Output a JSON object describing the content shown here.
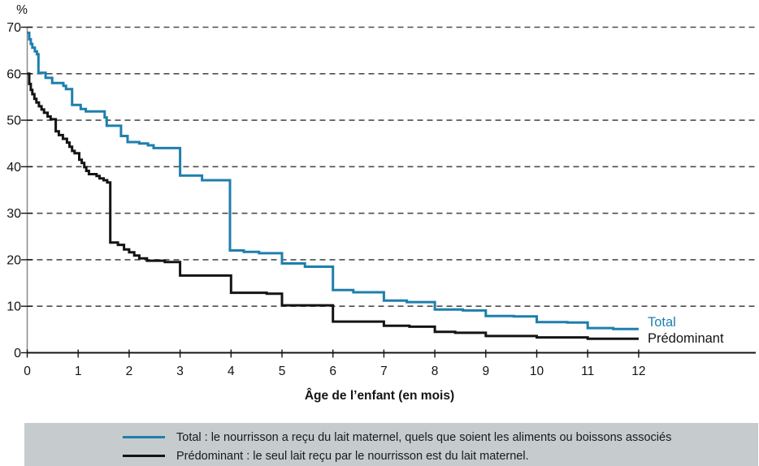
{
  "chart_data": {
    "type": "line",
    "subtype": "step-after",
    "ylabel": "%",
    "xlabel": "Âge de l’enfant (en mois)",
    "xlim": [
      0,
      12
    ],
    "ylim": [
      0,
      70
    ],
    "x_ticks": [
      0,
      1,
      2,
      3,
      4,
      5,
      6,
      7,
      8,
      9,
      10,
      11,
      12
    ],
    "y_ticks": [
      0,
      10,
      20,
      30,
      40,
      50,
      60,
      70
    ],
    "grid": "horizontal-dashed",
    "colors": {
      "total": "#1e7fad",
      "predominant": "#141414",
      "gridline": "#4d4d4d",
      "x_axis": "#141414",
      "y_axis": "#8a8a8a",
      "legend_background": "#c6cbce",
      "text": "#141414"
    },
    "series": [
      {
        "name": "Total",
        "end_label": "Total",
        "color": "#1e7fad",
        "points": [
          [
            0,
            68.8
          ],
          [
            0.04,
            67.4
          ],
          [
            0.07,
            66.4
          ],
          [
            0.1,
            65.6
          ],
          [
            0.15,
            64.8
          ],
          [
            0.19,
            64.2
          ],
          [
            0.22,
            60.2
          ],
          [
            0.36,
            59.1
          ],
          [
            0.49,
            58.0
          ],
          [
            0.71,
            57.4
          ],
          [
            0.76,
            56.7
          ],
          [
            0.88,
            53.3
          ],
          [
            1.05,
            52.4
          ],
          [
            1.15,
            51.9
          ],
          [
            1.52,
            50.6
          ],
          [
            1.56,
            48.8
          ],
          [
            1.84,
            46.6
          ],
          [
            1.97,
            45.3
          ],
          [
            2.2,
            45.0
          ],
          [
            2.37,
            44.6
          ],
          [
            2.48,
            44.0
          ],
          [
            3.0,
            38.1
          ],
          [
            3.43,
            37.1
          ],
          [
            3.98,
            22.0
          ],
          [
            4.25,
            21.7
          ],
          [
            4.55,
            21.4
          ],
          [
            5.0,
            19.2
          ],
          [
            5.45,
            18.5
          ],
          [
            6.0,
            13.5
          ],
          [
            6.4,
            13.0
          ],
          [
            7.0,
            11.2
          ],
          [
            7.45,
            10.9
          ],
          [
            8.0,
            9.3
          ],
          [
            8.55,
            9.1
          ],
          [
            9.0,
            7.9
          ],
          [
            9.55,
            7.8
          ],
          [
            10.0,
            6.6
          ],
          [
            10.6,
            6.5
          ],
          [
            11.0,
            5.3
          ],
          [
            11.5,
            5.1
          ],
          [
            12,
            5.1
          ]
        ]
      },
      {
        "name": "Prédominant",
        "end_label": "Prédominant",
        "color": "#141414",
        "points": [
          [
            0,
            60.0
          ],
          [
            0.04,
            57.8
          ],
          [
            0.07,
            56.5
          ],
          [
            0.1,
            55.6
          ],
          [
            0.14,
            54.6
          ],
          [
            0.18,
            53.8
          ],
          [
            0.23,
            53.0
          ],
          [
            0.28,
            52.3
          ],
          [
            0.33,
            51.6
          ],
          [
            0.4,
            50.8
          ],
          [
            0.46,
            50.2
          ],
          [
            0.56,
            47.6
          ],
          [
            0.62,
            46.8
          ],
          [
            0.7,
            46.0
          ],
          [
            0.78,
            45.2
          ],
          [
            0.83,
            44.3
          ],
          [
            0.88,
            43.4
          ],
          [
            0.93,
            42.9
          ],
          [
            1.02,
            41.5
          ],
          [
            1.07,
            40.8
          ],
          [
            1.12,
            39.9
          ],
          [
            1.16,
            39.1
          ],
          [
            1.21,
            38.4
          ],
          [
            1.36,
            38.0
          ],
          [
            1.42,
            37.5
          ],
          [
            1.5,
            37.1
          ],
          [
            1.57,
            36.6
          ],
          [
            1.63,
            23.7
          ],
          [
            1.78,
            23.2
          ],
          [
            1.9,
            22.2
          ],
          [
            2.0,
            21.6
          ],
          [
            2.1,
            20.9
          ],
          [
            2.2,
            20.3
          ],
          [
            2.35,
            19.8
          ],
          [
            2.7,
            19.5
          ],
          [
            3.0,
            16.6
          ],
          [
            4.0,
            12.9
          ],
          [
            4.7,
            12.7
          ],
          [
            5.0,
            10.2
          ],
          [
            6.0,
            6.7
          ],
          [
            7.0,
            5.8
          ],
          [
            7.5,
            5.6
          ],
          [
            8.0,
            4.5
          ],
          [
            8.4,
            4.3
          ],
          [
            9.0,
            3.6
          ],
          [
            10.0,
            3.3
          ],
          [
            11.0,
            3.0
          ],
          [
            12,
            3.0
          ]
        ]
      }
    ],
    "legend": {
      "position": "bottom",
      "items": [
        {
          "label": "Total : le nourrisson a reçu du lait maternel, quels que soient les aliments ou boissons associés",
          "color": "#1e7fad"
        },
        {
          "label": "Prédominant : le seul lait reçu par le nourrisson est du lait maternel.",
          "color": "#141414"
        }
      ]
    }
  }
}
